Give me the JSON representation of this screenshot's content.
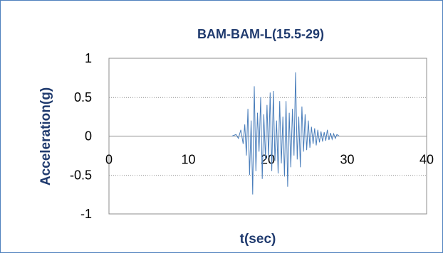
{
  "chart_data": {
    "type": "line",
    "title": "BAM-BAM-L(15.5-29)",
    "xlabel": "t(sec)",
    "ylabel": "Acceleration(g)",
    "xlim": [
      0,
      40
    ],
    "ylim": [
      -1,
      1
    ],
    "xticks": [
      "0",
      "10",
      "20",
      "30",
      "40"
    ],
    "yticks": [
      "1",
      "0.5",
      "0",
      "-0.5",
      "-1"
    ],
    "grid": "horizontal",
    "series": [
      {
        "color": "#4a7ebb",
        "x": [
          15.5,
          16.0,
          16.3,
          16.6,
          16.9,
          17.1,
          17.3,
          17.5,
          17.7,
          17.9,
          18.1,
          18.3,
          18.5,
          18.7,
          18.9,
          19.1,
          19.3,
          19.5,
          19.7,
          19.9,
          20.1,
          20.3,
          20.5,
          20.7,
          20.9,
          21.1,
          21.3,
          21.5,
          21.7,
          21.9,
          22.1,
          22.3,
          22.5,
          22.7,
          22.9,
          23.1,
          23.3,
          23.5,
          23.7,
          23.9,
          24.1,
          24.3,
          24.5,
          24.7,
          24.9,
          25.1,
          25.3,
          25.5,
          25.7,
          25.9,
          26.1,
          26.3,
          26.5,
          26.7,
          26.9,
          27.1,
          27.3,
          27.5,
          27.7,
          27.9,
          28.1,
          28.3,
          28.5,
          28.7,
          29.0
        ],
        "y": [
          0.0,
          0.02,
          -0.03,
          0.08,
          -0.1,
          0.15,
          -0.25,
          0.35,
          -0.5,
          0.2,
          -0.75,
          0.64,
          -0.45,
          0.3,
          -0.2,
          0.5,
          -0.55,
          0.28,
          -0.3,
          0.4,
          -0.28,
          0.56,
          -0.45,
          0.58,
          -0.32,
          0.2,
          -0.48,
          0.45,
          -0.35,
          0.25,
          -0.52,
          0.45,
          -0.65,
          0.3,
          -0.4,
          0.35,
          -0.25,
          0.82,
          -0.3,
          0.25,
          -0.4,
          0.38,
          -0.2,
          0.28,
          -0.18,
          0.2,
          -0.15,
          0.12,
          -0.1,
          0.1,
          -0.12,
          0.08,
          -0.08,
          0.06,
          -0.07,
          0.05,
          -0.06,
          0.08,
          -0.05,
          0.04,
          -0.04,
          0.03,
          -0.03,
          0.02,
          0.0
        ]
      }
    ]
  }
}
